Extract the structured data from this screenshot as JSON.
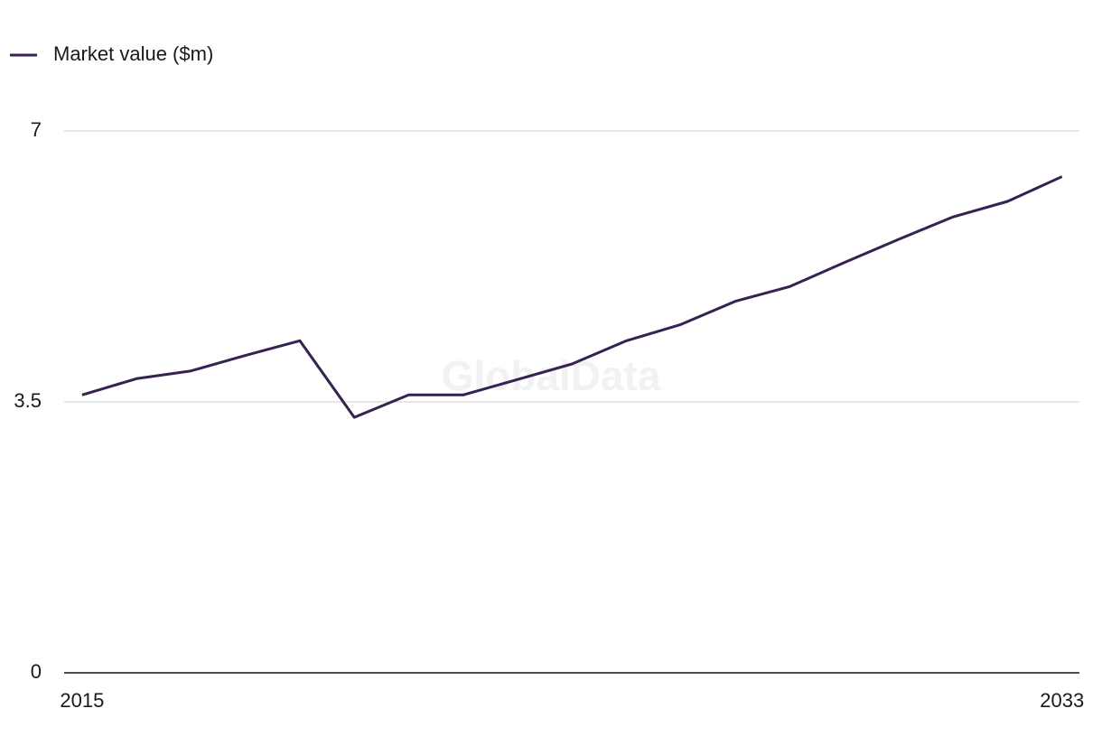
{
  "chart_data": {
    "type": "line",
    "watermark": "GlobalData",
    "x": [
      2015,
      2016,
      2017,
      2018,
      2019,
      2020,
      2021,
      2022,
      2023,
      2024,
      2025,
      2026,
      2027,
      2028,
      2029,
      2030,
      2031,
      2032,
      2033
    ],
    "series": [
      {
        "name": "Market value ($m)",
        "color": "#35224f",
        "values": [
          3.59,
          3.8,
          3.9,
          4.1,
          4.29,
          3.3,
          3.59,
          3.59,
          3.79,
          3.99,
          4.29,
          4.5,
          4.8,
          4.99,
          5.3,
          5.6,
          5.89,
          6.09,
          6.41
        ]
      }
    ],
    "xlim": [
      2014.67,
      2033.32
    ],
    "xticks": [
      2015,
      2033
    ],
    "ylim": [
      0,
      7
    ],
    "yticks": [
      0,
      3.5,
      7
    ],
    "grid": true,
    "legend": "top-left"
  }
}
